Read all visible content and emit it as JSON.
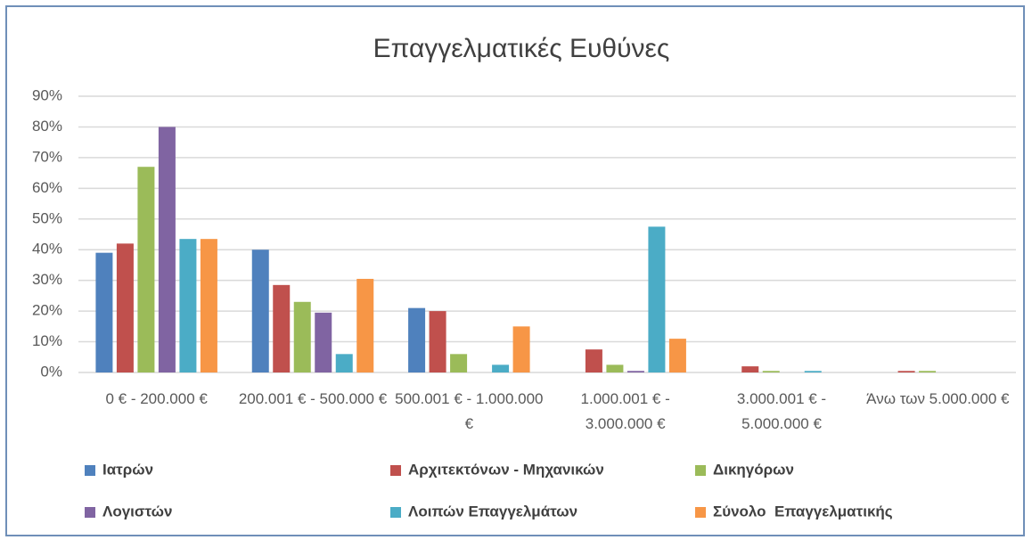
{
  "chart_data": {
    "type": "bar",
    "title": "Επαγγελματικές Ευθύνες",
    "categories": [
      "0 € - 200.000 €",
      "200.001 € - 500.000 €",
      "500.001 € - 1.000.000 €",
      "1.000.001 € - 3.000.000 €",
      "3.000.001 € - 5.000.000 €",
      "Άνω των 5.000.000 €"
    ],
    "series": [
      {
        "name": "Ιατρών",
        "color": "#4f81bd",
        "values": [
          39,
          40,
          21,
          0,
          0,
          0
        ]
      },
      {
        "name": "Αρχιτεκτόνων - Μηχανικών",
        "color": "#c0504d",
        "values": [
          42,
          28.5,
          20,
          7.5,
          2,
          0.5
        ]
      },
      {
        "name": "Δικηγόρων",
        "color": "#9bbb59",
        "values": [
          67,
          23,
          6,
          2.5,
          0.5,
          0.5
        ]
      },
      {
        "name": "Λογιστών",
        "color": "#8064a2",
        "values": [
          80,
          19.5,
          0,
          0.5,
          0,
          0
        ]
      },
      {
        "name": "Λοιπών Επαγγελμάτων",
        "color": "#4bacc6",
        "values": [
          43.5,
          6,
          2.5,
          47.5,
          0.5,
          0
        ]
      },
      {
        "name": "Σύνολο  Επαγγελματικής",
        "color": "#f79646",
        "values": [
          43.5,
          30.5,
          15,
          11,
          0,
          0
        ]
      }
    ],
    "ylim": [
      0,
      90
    ],
    "yticks": [
      {
        "value": 0,
        "label": "0%"
      },
      {
        "value": 10,
        "label": "10%"
      },
      {
        "value": 20,
        "label": "20%"
      },
      {
        "value": 30,
        "label": "30%"
      },
      {
        "value": 40,
        "label": "40%"
      },
      {
        "value": 50,
        "label": "50%"
      },
      {
        "value": 60,
        "label": "60%"
      },
      {
        "value": 70,
        "label": "70%"
      },
      {
        "value": 80,
        "label": "80%"
      },
      {
        "value": 90,
        "label": "90%"
      }
    ],
    "grid": true,
    "legend": "bottom"
  }
}
